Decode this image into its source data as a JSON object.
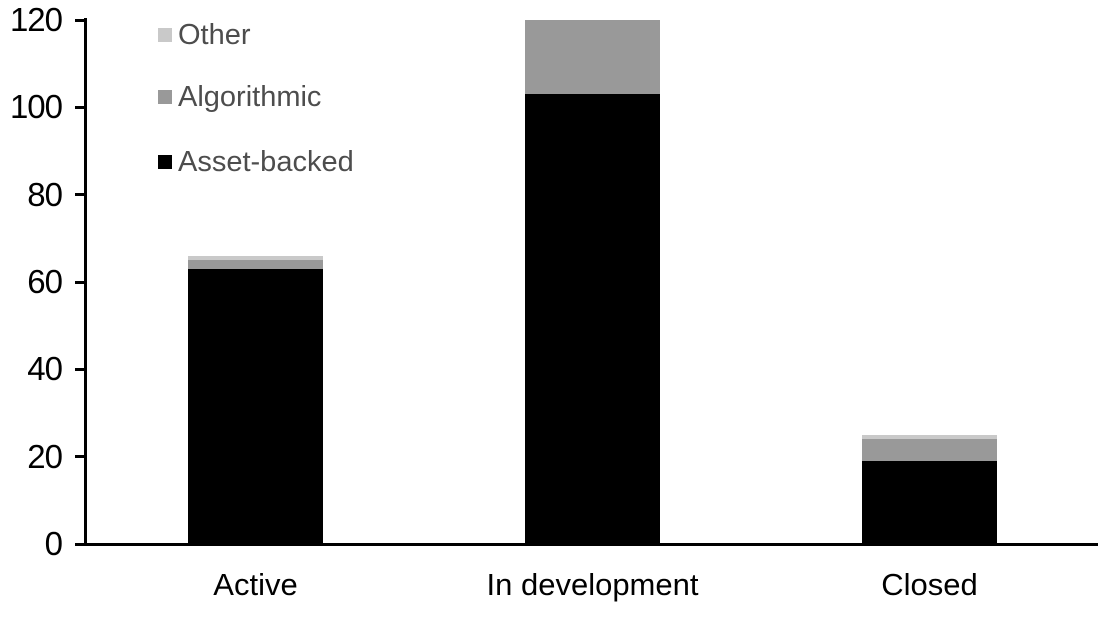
{
  "chart_data": {
    "type": "bar",
    "stacked": true,
    "title": "",
    "xlabel": "",
    "ylabel": "",
    "categories": [
      "Active",
      "In development",
      "Closed"
    ],
    "series": [
      {
        "name": "Asset-backed",
        "color": "#000000",
        "values": [
          63,
          103,
          19
        ]
      },
      {
        "name": "Algorithmic",
        "color": "#999999",
        "values": [
          2,
          17,
          5
        ]
      },
      {
        "name": "Other",
        "color": "#c9c9c9",
        "values": [
          1,
          0,
          1
        ]
      }
    ],
    "stack_order_bottom_to_top": [
      "Asset-backed",
      "Algorithmic",
      "Other"
    ],
    "legend": {
      "position": "top-left-inside",
      "entries": [
        "Other",
        "Algorithmic",
        "Asset-backed"
      ]
    },
    "y_axis": {
      "min": 0,
      "max": 120,
      "tick_step": 20,
      "ticks": [
        0,
        20,
        40,
        60,
        80,
        100,
        120
      ]
    },
    "grid": false
  },
  "style": {
    "axis_color": "#000000",
    "tick_label_color": "#000000",
    "category_label_color": "#000000",
    "legend_text_color": "#4d4d4d",
    "background": "#ffffff"
  }
}
